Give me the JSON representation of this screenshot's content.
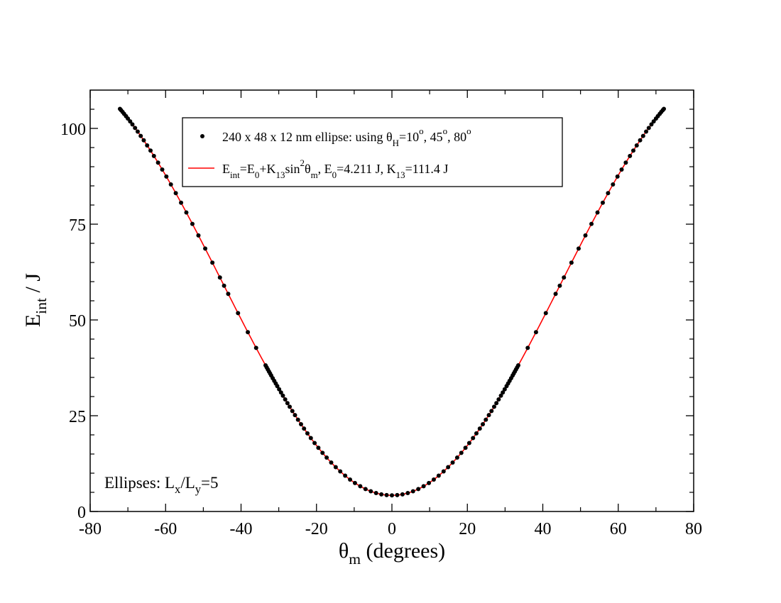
{
  "chart_data": {
    "type": "scatter",
    "title": "",
    "xlabel": {
      "symbol": "θ",
      "sub": "m",
      "rest": " (degrees)"
    },
    "ylabel": {
      "symbol": "E",
      "sub": "int",
      "rest": " / J"
    },
    "xlim": [
      -80,
      80
    ],
    "ylim": [
      0,
      110
    ],
    "x_ticks": [
      -80,
      -60,
      -40,
      -20,
      0,
      20,
      40,
      60,
      80
    ],
    "y_ticks": [
      0,
      25,
      50,
      75,
      100
    ],
    "x_tick_labels": [
      "-80",
      "-60",
      "-40",
      "-20",
      "0",
      "20",
      "40",
      "60",
      "80"
    ],
    "y_tick_labels": [
      "0",
      "25",
      "50",
      "75",
      "100"
    ],
    "grid": false,
    "legend_position": "top-center",
    "series": [
      {
        "name": "240 x 48 x 12 nm ellipse:  using θH=10o, 45o, 80o",
        "kind": "points",
        "color": "#000000",
        "x": [
          -72.1,
          -71.8,
          -71.4,
          -71.0,
          -70.5,
          -70.0,
          -69.4,
          -68.8,
          -68.1,
          -67.4,
          -66.6,
          -65.8,
          -64.9,
          -64.0,
          -63.1,
          -62.0,
          -60.9,
          -59.8,
          -58.6,
          -57.3,
          -55.9,
          -54.5,
          -52.9,
          -51.3,
          -49.5,
          -47.6,
          -45.6,
          -44.5,
          -43.4,
          -40.8,
          -38.2,
          -36.0,
          -33.5,
          -33.2,
          -32.9,
          -32.6,
          -32.3,
          -32.0,
          -31.6,
          -31.2,
          -30.8,
          -30.4,
          -29.9,
          -29.4,
          -28.9,
          -28.3,
          -27.7,
          -27.1,
          -26.4,
          -25.7,
          -24.9,
          -24.1,
          -23.3,
          -22.4,
          -21.5,
          -20.5,
          -19.5,
          -18.4,
          -17.3,
          -16.1,
          -14.9,
          -13.7,
          -12.4,
          -11.1,
          -9.8,
          -8.4,
          -7.0,
          -5.6,
          -4.2,
          -2.8,
          -1.4,
          0.0,
          1.4,
          2.8,
          4.2,
          5.6,
          7.0,
          8.4,
          9.8,
          11.1,
          12.4,
          13.7,
          14.9,
          16.1,
          17.3,
          18.4,
          19.5,
          20.5,
          21.5,
          22.4,
          23.3,
          24.1,
          24.9,
          25.7,
          26.4,
          27.1,
          27.7,
          28.3,
          28.9,
          29.4,
          29.9,
          30.4,
          30.8,
          31.2,
          31.6,
          32.0,
          32.3,
          32.6,
          32.9,
          33.2,
          33.5,
          36.0,
          38.2,
          40.8,
          43.4,
          44.5,
          45.6,
          47.6,
          49.5,
          51.3,
          52.9,
          54.5,
          55.9,
          57.3,
          58.6,
          59.8,
          60.9,
          62.0,
          63.1,
          64.0,
          64.9,
          65.8,
          66.6,
          67.4,
          68.1,
          68.8,
          69.4,
          70.0,
          70.5,
          71.0,
          71.4,
          71.8,
          72.1
        ]
      },
      {
        "name": "Eint=E0+K13sin2θm,   E0=4.211 J,   K13=111.4 J",
        "kind": "line",
        "color": "#ff0000",
        "function": "E0+K13*sin(theta)^2",
        "E0": 4.211,
        "K13": 111.4,
        "x_range": [
          -72.1,
          72.1
        ]
      }
    ],
    "legend": {
      "entries": [
        {
          "marker": "dot",
          "parts": [
            {
              "t": "240 x 48 x 12 nm ellipse:  using θ"
            },
            {
              "t": "H",
              "sub": true
            },
            {
              "t": "=10"
            },
            {
              "t": "o",
              "sup": true
            },
            {
              "t": ", 45"
            },
            {
              "t": "o",
              "sup": true
            },
            {
              "t": ", 80"
            },
            {
              "t": "o",
              "sup": true
            }
          ]
        },
        {
          "marker": "line",
          "parts": [
            {
              "t": "E"
            },
            {
              "t": "int",
              "sub": true
            },
            {
              "t": "=E"
            },
            {
              "t": "0",
              "sub": true
            },
            {
              "t": "+K"
            },
            {
              "t": "13",
              "sub": true
            },
            {
              "t": "sin"
            },
            {
              "t": "2",
              "sup": true
            },
            {
              "t": "θ"
            },
            {
              "t": "m",
              "sub": true
            },
            {
              "t": ",   E"
            },
            {
              "t": "0",
              "sub": true
            },
            {
              "t": "=4.211 J,   K"
            },
            {
              "t": "13",
              "sub": true
            },
            {
              "t": "=111.4 J"
            }
          ]
        }
      ]
    },
    "annotation": {
      "parts": [
        {
          "t": "Ellipses: L"
        },
        {
          "t": "x",
          "sub": true
        },
        {
          "t": "/L"
        },
        {
          "t": "y",
          "sub": true
        },
        {
          "t": "=5"
        }
      ]
    }
  }
}
